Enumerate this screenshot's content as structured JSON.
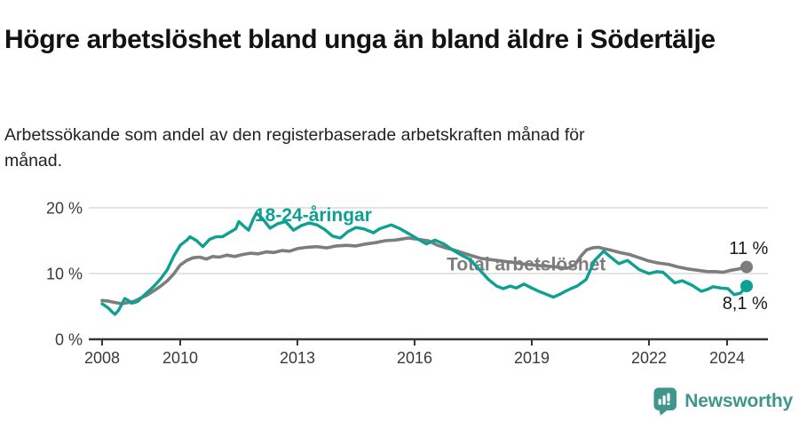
{
  "header": {
    "title": "Högre arbetslöshet bland unga än bland äldre i Södertälje",
    "subtitle": "Arbetssökande som andel av den registerbaserade arbetskraften månad för månad."
  },
  "footer": {
    "brand": "Newsworthy",
    "brand_color": "#3e968c",
    "logo_icon": "newsworthy-speech-bubble-bar-chart-icon"
  },
  "chart_data": {
    "type": "line",
    "title": "Högre arbetslöshet bland unga än bland äldre i Södertälje",
    "subtitle": "Arbetssökande som andel av den registerbaserade arbetskraften månad för månad.",
    "xlabel": "",
    "ylabel": "",
    "grid": "horizontal-only",
    "legend_position": "inline-labels",
    "xlim": [
      2007.66,
      2025.05
    ],
    "ylim": [
      0,
      22.6
    ],
    "x_axis": {
      "ticks": [
        {
          "value": 2008,
          "label": "2008"
        },
        {
          "value": 2010,
          "label": "2010"
        },
        {
          "value": 2013,
          "label": "2013"
        },
        {
          "value": 2016,
          "label": "2016"
        },
        {
          "value": 2019,
          "label": "2019"
        },
        {
          "value": 2022,
          "label": "2022"
        },
        {
          "value": 2024,
          "label": "2024"
        }
      ]
    },
    "y_axis": {
      "ticks": [
        {
          "value": 0,
          "label": "0 %"
        },
        {
          "value": 10,
          "label": "10 %"
        },
        {
          "value": 20,
          "label": "20 %"
        }
      ],
      "gridlines": [
        10,
        20
      ]
    },
    "style": {
      "grid_color": "#dcdcdc",
      "axis_color": "#363636",
      "axis_text_color": "#3a3a3a",
      "end_dot_radius": 7
    },
    "series": [
      {
        "id": "total",
        "name": "Total arbetslöshet",
        "color": "#7d7d7d",
        "line_width": 3.6,
        "label": "Total arbetslöshet",
        "label_pos": [
          2016.82,
          10.45
        ],
        "end_label": "11 %",
        "end_label_pos": [
          2024.05,
          13.0
        ],
        "end_value": 11.0,
        "points": [
          [
            2008.0,
            5.9
          ],
          [
            2008.17,
            5.8
          ],
          [
            2008.33,
            5.6
          ],
          [
            2008.5,
            5.4
          ],
          [
            2008.67,
            5.6
          ],
          [
            2008.83,
            5.8
          ],
          [
            2009.0,
            6.3
          ],
          [
            2009.17,
            6.8
          ],
          [
            2009.33,
            7.4
          ],
          [
            2009.5,
            8.1
          ],
          [
            2009.67,
            8.9
          ],
          [
            2009.83,
            9.9
          ],
          [
            2010.0,
            11.3
          ],
          [
            2010.17,
            12.0
          ],
          [
            2010.33,
            12.4
          ],
          [
            2010.5,
            12.5
          ],
          [
            2010.67,
            12.2
          ],
          [
            2010.83,
            12.6
          ],
          [
            2011.0,
            12.5
          ],
          [
            2011.2,
            12.8
          ],
          [
            2011.4,
            12.6
          ],
          [
            2011.6,
            12.9
          ],
          [
            2011.8,
            13.1
          ],
          [
            2012.0,
            13.0
          ],
          [
            2012.2,
            13.3
          ],
          [
            2012.4,
            13.2
          ],
          [
            2012.6,
            13.5
          ],
          [
            2012.8,
            13.4
          ],
          [
            2013.0,
            13.8
          ],
          [
            2013.25,
            14.0
          ],
          [
            2013.5,
            14.1
          ],
          [
            2013.75,
            13.9
          ],
          [
            2014.0,
            14.2
          ],
          [
            2014.25,
            14.3
          ],
          [
            2014.5,
            14.2
          ],
          [
            2014.75,
            14.5
          ],
          [
            2015.0,
            14.7
          ],
          [
            2015.25,
            15.0
          ],
          [
            2015.5,
            15.1
          ],
          [
            2015.84,
            15.4
          ],
          [
            2016.1,
            15.2
          ],
          [
            2016.35,
            15.0
          ],
          [
            2016.59,
            14.3
          ],
          [
            2016.8,
            13.9
          ],
          [
            2017.0,
            13.6
          ],
          [
            2017.36,
            12.9
          ],
          [
            2017.7,
            12.3
          ],
          [
            2018.11,
            12.0
          ],
          [
            2018.5,
            11.7
          ],
          [
            2018.86,
            11.4
          ],
          [
            2019.2,
            11.2
          ],
          [
            2019.64,
            11.0
          ],
          [
            2019.9,
            10.8
          ],
          [
            2020.1,
            11.3
          ],
          [
            2020.25,
            12.6
          ],
          [
            2020.4,
            13.6
          ],
          [
            2020.55,
            13.9
          ],
          [
            2020.7,
            14.0
          ],
          [
            2020.84,
            13.8
          ],
          [
            2021.0,
            13.6
          ],
          [
            2021.25,
            13.2
          ],
          [
            2021.5,
            12.9
          ],
          [
            2021.75,
            12.4
          ],
          [
            2022.0,
            11.9
          ],
          [
            2022.25,
            11.6
          ],
          [
            2022.5,
            11.4
          ],
          [
            2022.75,
            11.0
          ],
          [
            2023.0,
            10.7
          ],
          [
            2023.25,
            10.5
          ],
          [
            2023.5,
            10.3
          ],
          [
            2023.7,
            10.3
          ],
          [
            2023.9,
            10.2
          ],
          [
            2024.1,
            10.5
          ],
          [
            2024.3,
            10.7
          ],
          [
            2024.5,
            11.0
          ]
        ]
      },
      {
        "id": "youth",
        "name": "18-24-åringar",
        "color": "#0ea193",
        "line_width": 3.4,
        "label": "18-24-åringar",
        "label_pos": [
          2011.91,
          18.0
        ],
        "end_label": "8,1 %",
        "end_label_pos": [
          2023.88,
          4.6
        ],
        "end_value": 8.1,
        "points": [
          [
            2008.0,
            5.4
          ],
          [
            2008.08,
            5.1
          ],
          [
            2008.17,
            4.7
          ],
          [
            2008.25,
            4.2
          ],
          [
            2008.33,
            3.8
          ],
          [
            2008.42,
            4.4
          ],
          [
            2008.5,
            5.3
          ],
          [
            2008.58,
            6.2
          ],
          [
            2008.67,
            5.9
          ],
          [
            2008.75,
            5.5
          ],
          [
            2008.83,
            5.6
          ],
          [
            2008.92,
            5.8
          ],
          [
            2009.0,
            6.3
          ],
          [
            2009.17,
            7.2
          ],
          [
            2009.33,
            8.1
          ],
          [
            2009.5,
            9.2
          ],
          [
            2009.67,
            10.6
          ],
          [
            2009.83,
            12.6
          ],
          [
            2010.0,
            14.3
          ],
          [
            2010.17,
            15.1
          ],
          [
            2010.25,
            15.6
          ],
          [
            2010.42,
            15.0
          ],
          [
            2010.58,
            14.1
          ],
          [
            2010.75,
            15.2
          ],
          [
            2010.92,
            15.6
          ],
          [
            2011.08,
            15.6
          ],
          [
            2011.25,
            16.2
          ],
          [
            2011.42,
            16.8
          ],
          [
            2011.5,
            17.9
          ],
          [
            2011.63,
            17.2
          ],
          [
            2011.75,
            16.6
          ],
          [
            2011.87,
            18.3
          ],
          [
            2011.95,
            19.2
          ],
          [
            2012.1,
            18.4
          ],
          [
            2012.3,
            16.9
          ],
          [
            2012.5,
            17.6
          ],
          [
            2012.7,
            17.9
          ],
          [
            2012.9,
            16.6
          ],
          [
            2013.1,
            17.3
          ],
          [
            2013.3,
            17.7
          ],
          [
            2013.5,
            17.4
          ],
          [
            2013.7,
            16.7
          ],
          [
            2013.9,
            15.7
          ],
          [
            2014.1,
            15.4
          ],
          [
            2014.3,
            16.4
          ],
          [
            2014.5,
            17.0
          ],
          [
            2014.7,
            16.8
          ],
          [
            2014.95,
            16.2
          ],
          [
            2015.1,
            16.8
          ],
          [
            2015.4,
            17.4
          ],
          [
            2015.6,
            16.9
          ],
          [
            2015.84,
            16.1
          ],
          [
            2016.07,
            15.3
          ],
          [
            2016.3,
            14.5
          ],
          [
            2016.52,
            15.1
          ],
          [
            2016.75,
            14.5
          ],
          [
            2017.0,
            13.5
          ],
          [
            2017.2,
            12.8
          ],
          [
            2017.4,
            12.2
          ],
          [
            2017.6,
            11.0
          ],
          [
            2017.89,
            9.1
          ],
          [
            2018.1,
            8.1
          ],
          [
            2018.27,
            7.7
          ],
          [
            2018.45,
            8.1
          ],
          [
            2018.6,
            7.8
          ],
          [
            2018.8,
            8.4
          ],
          [
            2019.0,
            7.8
          ],
          [
            2019.18,
            7.3
          ],
          [
            2019.35,
            6.9
          ],
          [
            2019.55,
            6.4
          ],
          [
            2019.7,
            6.8
          ],
          [
            2019.86,
            7.3
          ],
          [
            2020.0,
            7.7
          ],
          [
            2020.16,
            8.1
          ],
          [
            2020.39,
            9.1
          ],
          [
            2020.61,
            12.0
          ],
          [
            2020.84,
            13.4
          ],
          [
            2021.0,
            12.6
          ],
          [
            2021.23,
            11.5
          ],
          [
            2021.45,
            12.0
          ],
          [
            2021.75,
            10.6
          ],
          [
            2022.0,
            10.0
          ],
          [
            2022.2,
            10.3
          ],
          [
            2022.36,
            10.2
          ],
          [
            2022.66,
            8.6
          ],
          [
            2022.85,
            8.9
          ],
          [
            2023.11,
            8.2
          ],
          [
            2023.34,
            7.3
          ],
          [
            2023.5,
            7.6
          ],
          [
            2023.64,
            8.0
          ],
          [
            2023.84,
            7.8
          ],
          [
            2024.02,
            7.7
          ],
          [
            2024.18,
            6.8
          ],
          [
            2024.34,
            7.0
          ],
          [
            2024.5,
            8.1
          ]
        ]
      }
    ]
  }
}
